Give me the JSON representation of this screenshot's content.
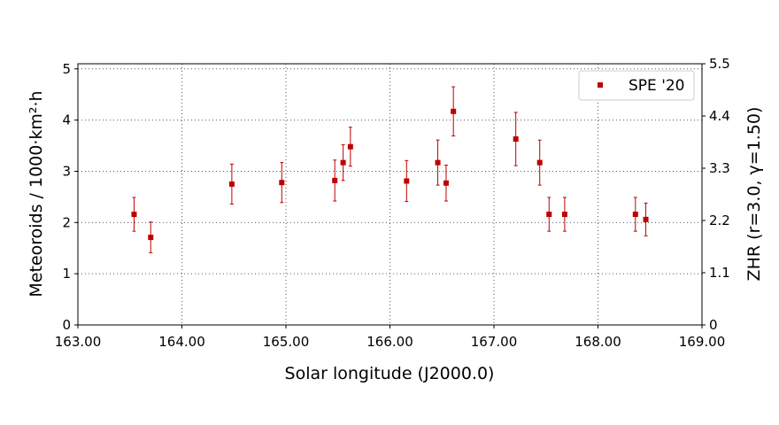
{
  "chart_data": {
    "type": "scatter",
    "title": "",
    "xlabel": "Solar longitude (J2000.0)",
    "ylabel": "Meteoroids / 1000·km²·h",
    "ylabel_right": "ZHR (r=3.0, γ=1.50)",
    "xlim": [
      163.0,
      169.0
    ],
    "ylim": [
      0,
      5.1
    ],
    "ylim_right": [
      0,
      5.5
    ],
    "x_ticks": [
      "163.00",
      "164.00",
      "165.00",
      "166.00",
      "167.00",
      "168.00",
      "169.00"
    ],
    "y_ticks": [
      "0",
      "1",
      "2",
      "3",
      "4",
      "5"
    ],
    "y_ticks_right": [
      "0",
      "1.1",
      "2.2",
      "3.3",
      "4.4",
      "5.5"
    ],
    "grid": true,
    "legend_position": "top-right",
    "colors": {
      "series": "#c00000",
      "grid": "#555555",
      "axes": "#000000"
    },
    "series": [
      {
        "name": "SPE '20",
        "marker": "square",
        "points": [
          {
            "x": 163.54,
            "y": 2.16,
            "err_low": 0.33,
            "err_high": 0.33
          },
          {
            "x": 163.7,
            "y": 1.71,
            "err_low": 0.3,
            "err_high": 0.3
          },
          {
            "x": 164.48,
            "y": 2.75,
            "err_low": 0.39,
            "err_high": 0.39
          },
          {
            "x": 164.96,
            "y": 2.78,
            "err_low": 0.39,
            "err_high": 0.39
          },
          {
            "x": 165.47,
            "y": 2.82,
            "err_low": 0.4,
            "err_high": 0.4
          },
          {
            "x": 165.55,
            "y": 3.17,
            "err_low": 0.35,
            "err_high": 0.35
          },
          {
            "x": 165.62,
            "y": 3.48,
            "err_low": 0.38,
            "err_high": 0.38
          },
          {
            "x": 166.16,
            "y": 2.81,
            "err_low": 0.4,
            "err_high": 0.4
          },
          {
            "x": 166.46,
            "y": 3.17,
            "err_low": 0.44,
            "err_high": 0.44
          },
          {
            "x": 166.54,
            "y": 2.77,
            "err_low": 0.35,
            "err_high": 0.35
          },
          {
            "x": 166.61,
            "y": 4.17,
            "err_low": 0.48,
            "err_high": 0.48
          },
          {
            "x": 167.21,
            "y": 3.63,
            "err_low": 0.52,
            "err_high": 0.52
          },
          {
            "x": 167.44,
            "y": 3.17,
            "err_low": 0.44,
            "err_high": 0.44
          },
          {
            "x": 167.53,
            "y": 2.16,
            "err_low": 0.33,
            "err_high": 0.33
          },
          {
            "x": 167.68,
            "y": 2.16,
            "err_low": 0.33,
            "err_high": 0.33
          },
          {
            "x": 168.36,
            "y": 2.16,
            "err_low": 0.33,
            "err_high": 0.33
          },
          {
            "x": 168.46,
            "y": 2.06,
            "err_low": 0.32,
            "err_high": 0.32
          }
        ]
      }
    ]
  }
}
